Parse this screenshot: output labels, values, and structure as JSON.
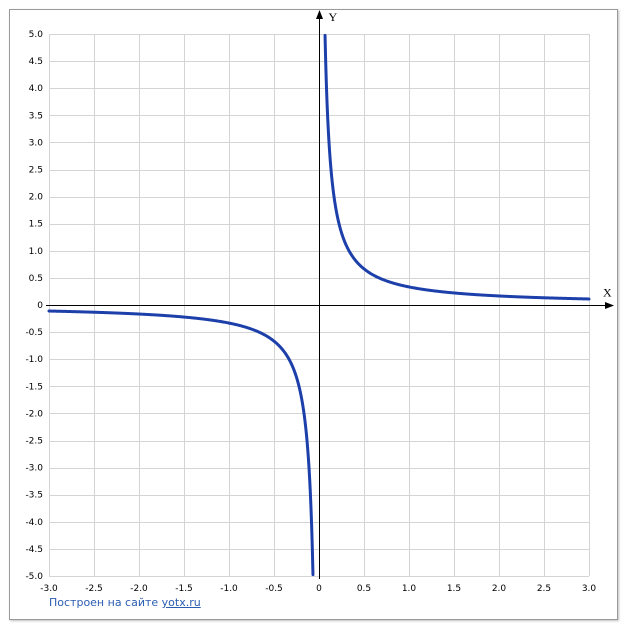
{
  "chart_data": {
    "type": "line",
    "function": "y = 1/(3x)",
    "x_axis_name": "X",
    "y_axis_name": "Y",
    "xlim": [
      -3.0,
      3.0
    ],
    "ylim": [
      -5.0,
      5.0
    ],
    "grid": true,
    "grid_step": 0.5,
    "x_tick_labels": [
      "-3.0",
      "-2.5",
      "-2.0",
      "-1.5",
      "-1.0",
      "-0.5",
      "0",
      "0.5",
      "1.0",
      "1.5",
      "2.0",
      "2.5",
      "3.0"
    ],
    "y_tick_labels": [
      "5.0",
      "4.5",
      "4.0",
      "3.5",
      "3.0",
      "2.5",
      "2.0",
      "1.5",
      "1.0",
      "0.5",
      "0",
      "-0.5",
      "-1.0",
      "-1.5",
      "-2.0",
      "-2.5",
      "-3.0",
      "-3.5",
      "-4.0",
      "-4.5",
      "-5.0"
    ],
    "series": [
      {
        "x": [
          -3.0,
          -2.5,
          -2.0,
          -1.5,
          -1.0,
          -0.5,
          -0.25,
          -0.1,
          -0.067,
          0.067,
          0.1,
          0.25,
          0.5,
          1.0,
          1.5,
          2.0,
          2.5,
          3.0
        ],
        "y": [
          -0.11,
          -0.13,
          -0.17,
          -0.22,
          -0.33,
          -0.67,
          -1.33,
          -3.33,
          -5.0,
          5.0,
          3.33,
          1.33,
          0.67,
          0.33,
          0.22,
          0.17,
          0.13,
          0.11
        ],
        "color": "#1c3faa"
      }
    ],
    "colors": {
      "curve": "#1c3faa",
      "grid": "#d4d4d4",
      "axis": "#000000",
      "frame": "#9a9a9a",
      "label": "#000000",
      "credit": "#2a5db0"
    }
  },
  "credit": {
    "prefix": "Построен на сайте ",
    "link": "yotx.ru"
  }
}
